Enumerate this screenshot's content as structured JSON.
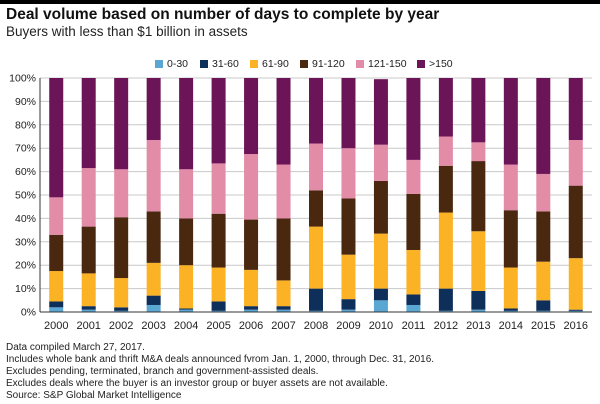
{
  "title": "Deal volume based on number of days to complete by year",
  "subtitle": "Buyers with less than $1 billion in assets",
  "colors": {
    "c0_30": "#5ba7d4",
    "c31_60": "#0e2f5a",
    "c61_90": "#fbb225",
    "c91_120": "#4a2810",
    "c121_150": "#e38ca8",
    "c150plus": "#6b1457",
    "grid": "#c8c8c8",
    "axis": "#333333"
  },
  "chart_data": {
    "type": "bar",
    "stacked": true,
    "categories": [
      "2000",
      "2001",
      "2002",
      "2003",
      "2004",
      "2005",
      "2006",
      "2007",
      "2008",
      "2009",
      "2010",
      "2011",
      "2012",
      "2013",
      "2014",
      "2015",
      "2016"
    ],
    "y_tick_labels": [
      "0%",
      "10%",
      "20%",
      "30%",
      "40%",
      "50%",
      "60%",
      "70%",
      "80%",
      "90%",
      "100%"
    ],
    "ylim": [
      0,
      100
    ],
    "grid": true,
    "legend_position": "top",
    "series": [
      {
        "name": "0-30",
        "color_key": "c0_30",
        "values": [
          2,
          1,
          0.5,
          3,
          1,
          0.5,
          1,
          1,
          0.5,
          1,
          5,
          3,
          0.5,
          1,
          0.5,
          0.5,
          0.5
        ]
      },
      {
        "name": "31-60",
        "color_key": "c31_60",
        "values": [
          2.5,
          1.5,
          1.5,
          4,
          0.5,
          4,
          1.5,
          1.5,
          9.5,
          4.5,
          5,
          4.5,
          9.5,
          8,
          1,
          4.5,
          0.5
        ]
      },
      {
        "name": "61-90",
        "color_key": "c61_90",
        "values": [
          13,
          14,
          12.5,
          14,
          18.5,
          14.5,
          15.5,
          11,
          26.5,
          19,
          23.5,
          19,
          32.5,
          25.5,
          17.5,
          16.5,
          22
        ]
      },
      {
        "name": "91-120",
        "color_key": "c91_120",
        "values": [
          15.5,
          20,
          26,
          22,
          20,
          23,
          21.5,
          26.5,
          15.5,
          24,
          22.5,
          24,
          20,
          30,
          24.5,
          21.5,
          31
        ]
      },
      {
        "name": "121-150",
        "color_key": "c121_150",
        "values": [
          16,
          25,
          20.5,
          30.5,
          21,
          21.5,
          28,
          23,
          20,
          21.5,
          15.5,
          14.5,
          12.5,
          8,
          19.5,
          16,
          19.5
        ]
      },
      {
        "name": ">150",
        "color_key": "c150plus",
        "values": [
          51,
          38.5,
          39,
          26.5,
          39,
          36.5,
          32.5,
          37,
          28,
          30,
          28,
          35,
          25,
          27.5,
          37,
          41,
          26.5
        ]
      }
    ]
  },
  "footnotes": [
    "Data compiled March 27, 2017.",
    "Includes whole bank and thrift M&A deals announced fvrom Jan. 1, 2000, through Dec. 31, 2016.",
    "Excludes pending, terminated, branch and government-assisted deals.",
    "Excludes deals where the buyer is an investor group or buyer assets are not available.",
    "Source: S&P Global Market Intelligence"
  ]
}
